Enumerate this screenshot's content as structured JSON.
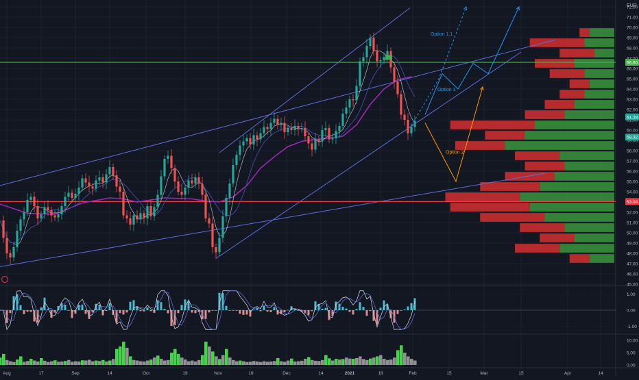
{
  "chart_data": {
    "type": "candlestick",
    "currency_label": "EUR",
    "colors": {
      "background": "#131722",
      "grid": "#1e2230",
      "axis_text": "#b2b5be",
      "up": "#26a69a",
      "down": "#ef5350",
      "channel": "#5b6fd6",
      "ma_purple": "#9c27b0",
      "resistance": "#4caf50",
      "support": "#f23645",
      "option1": "#2196f3",
      "option2": "#ff9800",
      "vp_up": "#388e3c",
      "vp_down": "#d32f2f",
      "vol_up": "#4ee84e",
      "vol_down": "#9e9e9e"
    },
    "price_axis": {
      "min": 45,
      "max": 72,
      "ticks": [
        "45.00",
        "46.00",
        "47.00",
        "48.00",
        "49.00",
        "50.00",
        "51.00",
        "52.00",
        "53.00",
        "54.00",
        "55.00",
        "56.00",
        "57.00",
        "58.00",
        "59.00",
        "60.00",
        "61.00",
        "62.00",
        "63.00",
        "64.00",
        "65.00",
        "66.00",
        "67.00",
        "68.00",
        "69.00",
        "70.00",
        "71.00",
        "72.00"
      ]
    },
    "time_axis": {
      "labels": [
        "Aug",
        "17",
        "Sep",
        "14",
        "Oct",
        "19",
        "Nov",
        "16",
        "Dec",
        "14",
        "2021",
        "18",
        "Feb",
        "15",
        "Mar",
        "15",
        "Apr",
        "14"
      ],
      "bold": [
        "2021"
      ]
    },
    "price_badges": [
      {
        "label": "66.60",
        "value": 66.6,
        "color": "#4caf50"
      },
      {
        "label": "61.28",
        "value": 61.28,
        "color": "#26a69a"
      },
      {
        "label": "59.32",
        "value": 59.32,
        "color": "#26a69a"
      },
      {
        "label": "53.04",
        "value": 53.04,
        "color": "#f23645"
      }
    ],
    "horizontal_lines": [
      {
        "name": "resistance",
        "value": 66.6
      },
      {
        "name": "support",
        "value": 53.04
      }
    ],
    "price_series": [
      [
        0,
        51.2
      ],
      [
        5,
        49.5
      ],
      [
        10,
        48.0
      ],
      [
        15,
        47.6
      ],
      [
        20,
        48.6
      ],
      [
        25,
        50.2
      ],
      [
        30,
        51.3
      ],
      [
        35,
        52.0
      ],
      [
        40,
        53.2
      ],
      [
        45,
        53.5
      ],
      [
        50,
        52.6
      ],
      [
        55,
        51.4
      ],
      [
        60,
        51.8
      ],
      [
        65,
        52.5
      ],
      [
        70,
        52.2
      ],
      [
        75,
        51.7
      ],
      [
        80,
        51.5
      ],
      [
        85,
        51.8
      ],
      [
        90,
        52.6
      ],
      [
        95,
        53.5
      ],
      [
        100,
        53.9
      ],
      [
        105,
        53.4
      ],
      [
        110,
        53.8
      ],
      [
        115,
        54.4
      ],
      [
        120,
        55.3
      ],
      [
        125,
        54.9
      ],
      [
        130,
        54.5
      ],
      [
        135,
        54.3
      ],
      [
        140,
        55.1
      ],
      [
        145,
        55.4
      ],
      [
        150,
        54.9
      ],
      [
        155,
        55.7
      ],
      [
        160,
        56.4
      ],
      [
        165,
        55.6
      ],
      [
        170,
        54.5
      ],
      [
        175,
        54.0
      ],
      [
        180,
        51.7
      ],
      [
        185,
        51.4
      ],
      [
        190,
        50.8
      ],
      [
        195,
        51.7
      ],
      [
        200,
        51.3
      ],
      [
        205,
        51.9
      ],
      [
        210,
        51.4
      ],
      [
        215,
        52.6
      ],
      [
        220,
        51.6
      ],
      [
        225,
        52.5
      ],
      [
        230,
        53.7
      ],
      [
        235,
        55.5
      ],
      [
        240,
        57.2
      ],
      [
        245,
        57.5
      ],
      [
        250,
        56.3
      ],
      [
        255,
        55.0
      ],
      [
        260,
        54.0
      ],
      [
        265,
        53.7
      ],
      [
        270,
        54.4
      ],
      [
        275,
        55.1
      ],
      [
        280,
        54.8
      ],
      [
        285,
        55.4
      ],
      [
        290,
        54.8
      ],
      [
        295,
        53.7
      ],
      [
        300,
        51.4
      ],
      [
        305,
        50.9
      ],
      [
        310,
        48.6
      ],
      [
        315,
        48.1
      ],
      [
        320,
        49.5
      ],
      [
        325,
        51.6
      ],
      [
        330,
        53.4
      ],
      [
        335,
        54.8
      ],
      [
        340,
        56.6
      ],
      [
        345,
        57.6
      ],
      [
        350,
        58.5
      ],
      [
        355,
        58.9
      ],
      [
        360,
        59.2
      ],
      [
        365,
        58.6
      ],
      [
        370,
        59.5
      ],
      [
        375,
        59.1
      ],
      [
        380,
        59.7
      ],
      [
        385,
        60.3
      ],
      [
        390,
        60.1
      ],
      [
        395,
        60.7
      ],
      [
        400,
        61.1
      ],
      [
        405,
        60.5
      ],
      [
        410,
        60.7
      ],
      [
        415,
        59.8
      ],
      [
        420,
        60.2
      ],
      [
        425,
        60.0
      ],
      [
        430,
        60.4
      ],
      [
        435,
        60.1
      ],
      [
        440,
        60.2
      ],
      [
        445,
        59.4
      ],
      [
        450,
        58.7
      ],
      [
        455,
        58.1
      ],
      [
        460,
        59.1
      ],
      [
        465,
        58.9
      ],
      [
        470,
        60.0
      ],
      [
        475,
        60.2
      ],
      [
        480,
        59.1
      ],
      [
        485,
        59.2
      ],
      [
        490,
        59.9
      ],
      [
        495,
        60.4
      ],
      [
        500,
        61.6
      ],
      [
        505,
        62.2
      ],
      [
        510,
        63.0
      ],
      [
        515,
        62.9
      ],
      [
        520,
        64.3
      ],
      [
        525,
        66.7
      ],
      [
        530,
        67.1
      ],
      [
        535,
        68.2
      ],
      [
        540,
        69.0
      ],
      [
        545,
        67.7
      ],
      [
        550,
        66.7
      ],
      [
        555,
        66.8
      ],
      [
        560,
        67.1
      ],
      [
        565,
        67.7
      ],
      [
        570,
        66.1
      ],
      [
        575,
        64.7
      ],
      [
        580,
        63.5
      ],
      [
        585,
        61.5
      ],
      [
        590,
        61.0
      ],
      [
        595,
        59.7
      ],
      [
        600,
        60.3
      ],
      [
        605,
        60.9
      ]
    ],
    "ma_purple_series": [
      [
        0,
        52.8
      ],
      [
        40,
        51.9
      ],
      [
        80,
        51.8
      ],
      [
        120,
        52.9
      ],
      [
        160,
        53.4
      ],
      [
        180,
        53.3
      ],
      [
        200,
        53.0
      ],
      [
        240,
        53.4
      ],
      [
        280,
        53.3
      ],
      [
        300,
        53.1
      ],
      [
        320,
        53.0
      ],
      [
        340,
        53.5
      ],
      [
        360,
        54.6
      ],
      [
        380,
        56.3
      ],
      [
        400,
        57.4
      ],
      [
        420,
        58.4
      ],
      [
        440,
        58.9
      ],
      [
        460,
        59.1
      ],
      [
        480,
        59.2
      ],
      [
        500,
        59.4
      ],
      [
        520,
        60.5
      ],
      [
        540,
        62.5
      ],
      [
        560,
        64.0
      ],
      [
        580,
        64.9
      ],
      [
        600,
        65.2
      ]
    ],
    "channels": [
      {
        "name": "upper-channel",
        "x1": 0,
        "y1": 54.6,
        "x2": 810,
        "y2": 68.8
      },
      {
        "name": "lower-channel",
        "x1": 0,
        "y1": 46.7,
        "x2": 795,
        "y2": 55.8
      },
      {
        "name": "steep-upper",
        "x1": 320,
        "y1": 57.8,
        "x2": 598,
        "y2": 71.9
      },
      {
        "name": "steep-lower",
        "x1": 315,
        "y1": 47.5,
        "x2": 760,
        "y2": 67.6
      }
    ],
    "projections": [
      {
        "label": "Option 1.1",
        "color": "#2196f3",
        "dashed": true,
        "points": [
          [
            600,
            60.4
          ],
          [
            640,
            65.0
          ],
          [
            680,
            72.0
          ]
        ]
      },
      {
        "label": "Option 1",
        "color": "#2196f3",
        "dashed": false,
        "points": [
          [
            620,
            61.5
          ],
          [
            645,
            65.5
          ],
          [
            668,
            64.0
          ],
          [
            690,
            66.5
          ],
          [
            712,
            65.5
          ],
          [
            757,
            72.0
          ]
        ]
      },
      {
        "label": "Option 2",
        "color": "#ff9800",
        "dashed": false,
        "points": [
          [
            620,
            60.7
          ],
          [
            665,
            55.0
          ],
          [
            704,
            64.2
          ]
        ]
      }
    ],
    "option_labels": [
      {
        "text": "Option 1.1",
        "x": 628,
        "y": 69.2,
        "color": "#2196f3"
      },
      {
        "text": "Option 1",
        "x": 638,
        "y": 63.8,
        "color": "#2196f3"
      },
      {
        "text": "Option 2",
        "x": 650,
        "y": 57.7,
        "color": "#ff9800"
      }
    ],
    "volume_profile": [
      {
        "price": 69.5,
        "up": 25,
        "down": 10
      },
      {
        "price": 68.5,
        "up": 30,
        "down": 55
      },
      {
        "price": 67.5,
        "up": 20,
        "down": 35
      },
      {
        "price": 66.5,
        "up": 40,
        "down": 40
      },
      {
        "price": 65.5,
        "up": 30,
        "down": 35
      },
      {
        "price": 64.5,
        "up": 25,
        "down": 20
      },
      {
        "price": 63.5,
        "up": 30,
        "down": 25
      },
      {
        "price": 62.5,
        "up": 40,
        "down": 30
      },
      {
        "price": 61.5,
        "up": 50,
        "down": 40
      },
      {
        "price": 60.5,
        "up": 80,
        "down": 85
      },
      {
        "price": 59.5,
        "up": 90,
        "down": 40
      },
      {
        "price": 58.5,
        "up": 110,
        "down": 50
      },
      {
        "price": 57.5,
        "up": 55,
        "down": 45
      },
      {
        "price": 56.5,
        "up": 50,
        "down": 40
      },
      {
        "price": 55.5,
        "up": 60,
        "down": 50
      },
      {
        "price": 54.5,
        "up": 75,
        "down": 60
      },
      {
        "price": 53.5,
        "up": 95,
        "down": 75
      },
      {
        "price": 52.5,
        "up": 85,
        "down": 80
      },
      {
        "price": 51.5,
        "up": 70,
        "down": 65
      },
      {
        "price": 50.5,
        "up": 50,
        "down": 45
      },
      {
        "price": 49.5,
        "up": 40,
        "down": 35
      },
      {
        "price": 48.5,
        "up": 55,
        "down": 45
      },
      {
        "price": 47.5,
        "up": 25,
        "down": 20
      }
    ],
    "oscillator": {
      "ticks": [
        "1.00",
        "0.00",
        "-1.00"
      ],
      "min": -1.4,
      "max": 1.4
    },
    "volume_panel": {
      "ticks": [
        "10.00",
        "5.00",
        "0.00"
      ],
      "max": 12
    },
    "volume_bars": [
      [
        0,
        3.0,
        1
      ],
      [
        5,
        4.5,
        1
      ],
      [
        10,
        2.0,
        0
      ],
      [
        15,
        1.5,
        0
      ],
      [
        20,
        1.2,
        0
      ],
      [
        25,
        2.2,
        1
      ],
      [
        30,
        3.5,
        1
      ],
      [
        35,
        1.3,
        0
      ],
      [
        40,
        1.6,
        0
      ],
      [
        45,
        2.5,
        1
      ],
      [
        50,
        1.8,
        0
      ],
      [
        55,
        1.4,
        0
      ],
      [
        60,
        2.8,
        1
      ],
      [
        65,
        1.7,
        0
      ],
      [
        70,
        1.2,
        0
      ],
      [
        75,
        1.5,
        0
      ],
      [
        80,
        1.9,
        1
      ],
      [
        85,
        1.3,
        0
      ],
      [
        90,
        1.4,
        0
      ],
      [
        95,
        1.6,
        1
      ],
      [
        100,
        2.0,
        0
      ],
      [
        105,
        1.3,
        0
      ],
      [
        110,
        1.5,
        0
      ],
      [
        115,
        1.4,
        0
      ],
      [
        120,
        1.9,
        1
      ],
      [
        125,
        1.8,
        0
      ],
      [
        130,
        2.1,
        0
      ],
      [
        135,
        1.5,
        0
      ],
      [
        140,
        1.8,
        1
      ],
      [
        145,
        1.6,
        0
      ],
      [
        150,
        2.0,
        1
      ],
      [
        155,
        1.4,
        0
      ],
      [
        160,
        1.8,
        1
      ],
      [
        165,
        2.4,
        0
      ],
      [
        170,
        6.5,
        1
      ],
      [
        175,
        7.5,
        1
      ],
      [
        180,
        9.5,
        1
      ],
      [
        185,
        7.0,
        0
      ],
      [
        190,
        3.5,
        1
      ],
      [
        195,
        2.0,
        0
      ],
      [
        200,
        1.8,
        0
      ],
      [
        205,
        1.5,
        0
      ],
      [
        210,
        1.4,
        0
      ],
      [
        215,
        1.8,
        0
      ],
      [
        220,
        2.2,
        1
      ],
      [
        225,
        3.0,
        0
      ],
      [
        230,
        3.8,
        1
      ],
      [
        235,
        2.5,
        0
      ],
      [
        240,
        1.8,
        0
      ],
      [
        245,
        2.0,
        0
      ],
      [
        250,
        5.0,
        1
      ],
      [
        255,
        6.5,
        1
      ],
      [
        260,
        4.5,
        1
      ],
      [
        265,
        3.0,
        0
      ],
      [
        270,
        2.2,
        0
      ],
      [
        275,
        1.5,
        0
      ],
      [
        280,
        1.8,
        0
      ],
      [
        285,
        1.4,
        0
      ],
      [
        290,
        2.0,
        0
      ],
      [
        295,
        4.0,
        1
      ],
      [
        300,
        9.5,
        1
      ],
      [
        305,
        7.5,
        0
      ],
      [
        310,
        5.5,
        1
      ],
      [
        315,
        3.5,
        0
      ],
      [
        320,
        2.4,
        1
      ],
      [
        325,
        4.0,
        0
      ],
      [
        330,
        6.5,
        1
      ],
      [
        335,
        3.0,
        0
      ],
      [
        340,
        2.0,
        0
      ],
      [
        345,
        1.5,
        0
      ],
      [
        350,
        1.8,
        1
      ],
      [
        355,
        1.5,
        0
      ],
      [
        360,
        1.2,
        0
      ],
      [
        365,
        1.3,
        0
      ],
      [
        370,
        1.6,
        0
      ],
      [
        375,
        1.4,
        0
      ],
      [
        380,
        1.2,
        0
      ],
      [
        385,
        1.5,
        0
      ],
      [
        390,
        1.3,
        0
      ],
      [
        395,
        1.4,
        0
      ],
      [
        400,
        1.6,
        0
      ],
      [
        405,
        2.8,
        1
      ],
      [
        410,
        1.5,
        0
      ],
      [
        415,
        1.3,
        0
      ],
      [
        420,
        1.8,
        0
      ],
      [
        425,
        2.6,
        1
      ],
      [
        430,
        1.4,
        0
      ],
      [
        435,
        1.5,
        0
      ],
      [
        440,
        1.7,
        0
      ],
      [
        445,
        2.5,
        0
      ],
      [
        450,
        3.2,
        1
      ],
      [
        455,
        2.0,
        0
      ],
      [
        460,
        1.7,
        0
      ],
      [
        465,
        1.6,
        0
      ],
      [
        470,
        2.0,
        0
      ],
      [
        475,
        4.0,
        1
      ],
      [
        480,
        2.7,
        1
      ],
      [
        485,
        1.8,
        0
      ],
      [
        490,
        2.5,
        1
      ],
      [
        495,
        2.2,
        0
      ],
      [
        500,
        2.4,
        1
      ],
      [
        505,
        3.0,
        0
      ],
      [
        510,
        2.6,
        0
      ],
      [
        515,
        2.5,
        1
      ],
      [
        520,
        2.8,
        0
      ],
      [
        525,
        3.5,
        0
      ],
      [
        530,
        2.4,
        0
      ],
      [
        535,
        2.0,
        0
      ],
      [
        540,
        2.6,
        1
      ],
      [
        545,
        3.0,
        0
      ],
      [
        550,
        3.5,
        1
      ],
      [
        555,
        4.0,
        0
      ],
      [
        560,
        2.5,
        0
      ],
      [
        565,
        2.0,
        0
      ],
      [
        570,
        2.2,
        0
      ],
      [
        575,
        3.0,
        0
      ],
      [
        580,
        6.0,
        1
      ],
      [
        585,
        8.0,
        1
      ],
      [
        590,
        5.0,
        0
      ],
      [
        595,
        3.5,
        0
      ],
      [
        600,
        2.5,
        0
      ],
      [
        605,
        1.8,
        0
      ]
    ]
  }
}
